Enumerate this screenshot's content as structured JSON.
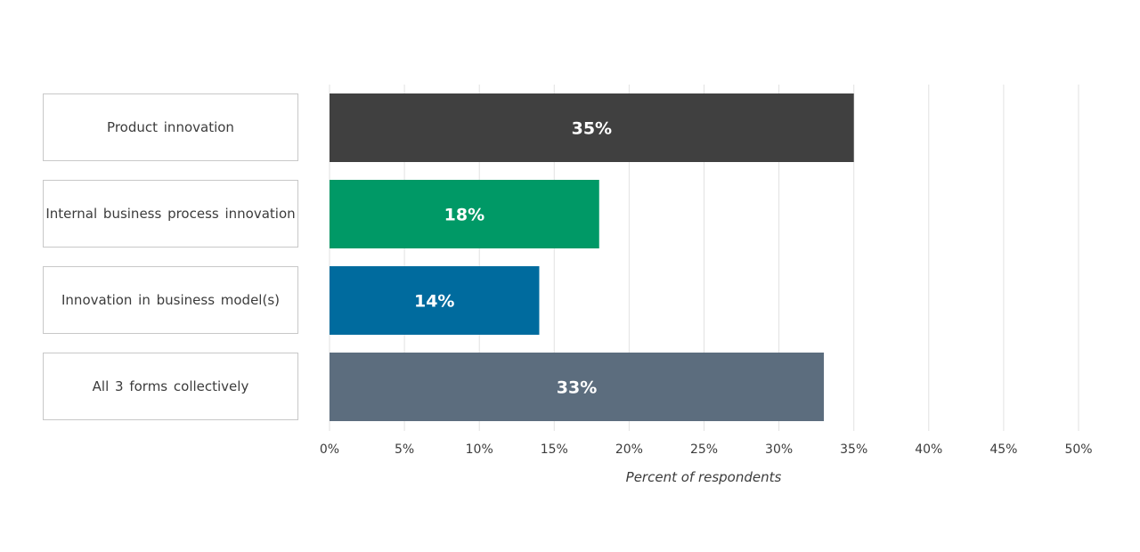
{
  "chart_data": {
    "type": "bar",
    "orientation": "horizontal",
    "categories": [
      "Product innovation",
      "Internal business process innovation",
      "Innovation in business model(s)",
      "All 3 forms collectively"
    ],
    "values": [
      35,
      18,
      14,
      33
    ],
    "data_labels": [
      "35%",
      "18%",
      "14%",
      "33%"
    ],
    "colors": [
      "#404040",
      "#009966",
      "#006b9e",
      "#5c6d7e"
    ],
    "xlabel": "Percent of respondents",
    "xlim": [
      0,
      50
    ],
    "xticks": [
      0,
      5,
      10,
      15,
      20,
      25,
      30,
      35,
      40,
      45,
      50
    ],
    "xtick_labels": [
      "0%",
      "5%",
      "10%",
      "15%",
      "20%",
      "25%",
      "30%",
      "35%",
      "40%",
      "45%",
      "50%"
    ],
    "grid": "vertical",
    "legend": "none"
  }
}
